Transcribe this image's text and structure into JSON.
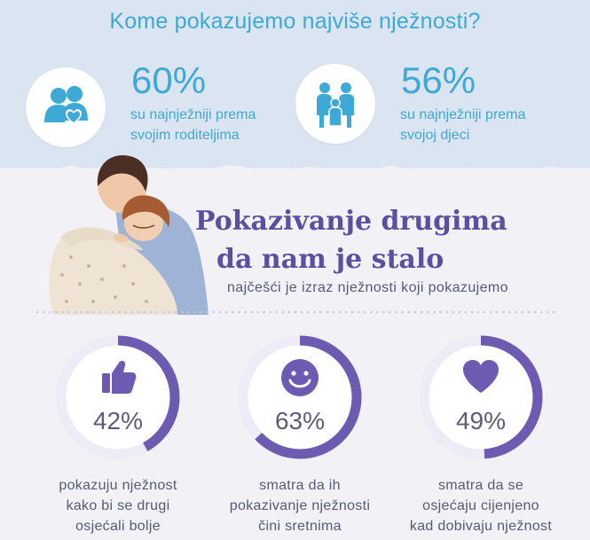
{
  "header": {
    "title": "Kome pokazujemo najviše nježnosti?"
  },
  "stats": [
    {
      "value": "60%",
      "line1": "su najnježniji prema",
      "line2": "svojim roditeljima",
      "icon": "parents-heart-icon"
    },
    {
      "value": "56%",
      "line1": "su najnježniji prema",
      "line2": "svojoj djeci",
      "icon": "family-icon"
    }
  ],
  "section": {
    "title_line1": "Pokazivanje drugima",
    "title_line2": "da nam je stalo",
    "subtitle": "najčešći je izraz nježnosti koji pokazujemo"
  },
  "rings": [
    {
      "value": "42%",
      "fraction": 0.42,
      "icon": "thumbs-up-icon",
      "caption": [
        "pokazuju nježnost",
        "kako bi se drugi",
        "osjećali bolje"
      ]
    },
    {
      "value": "63%",
      "fraction": 0.63,
      "icon": "smiley-icon",
      "caption": [
        "smatra da ih",
        "pokazivanje nježnosti",
        "čini sretnima"
      ]
    },
    {
      "value": "49%",
      "fraction": 0.49,
      "icon": "heart-icon",
      "caption": [
        "smatra da se",
        "osjećaju cijenjeno",
        "kad dobivaju nježnost"
      ]
    }
  ],
  "colors": {
    "accent_blue": "#3da9d4",
    "accent_purple": "#6c5bb0",
    "ring_track": "#ecebf6",
    "text_gray": "#555b73"
  }
}
